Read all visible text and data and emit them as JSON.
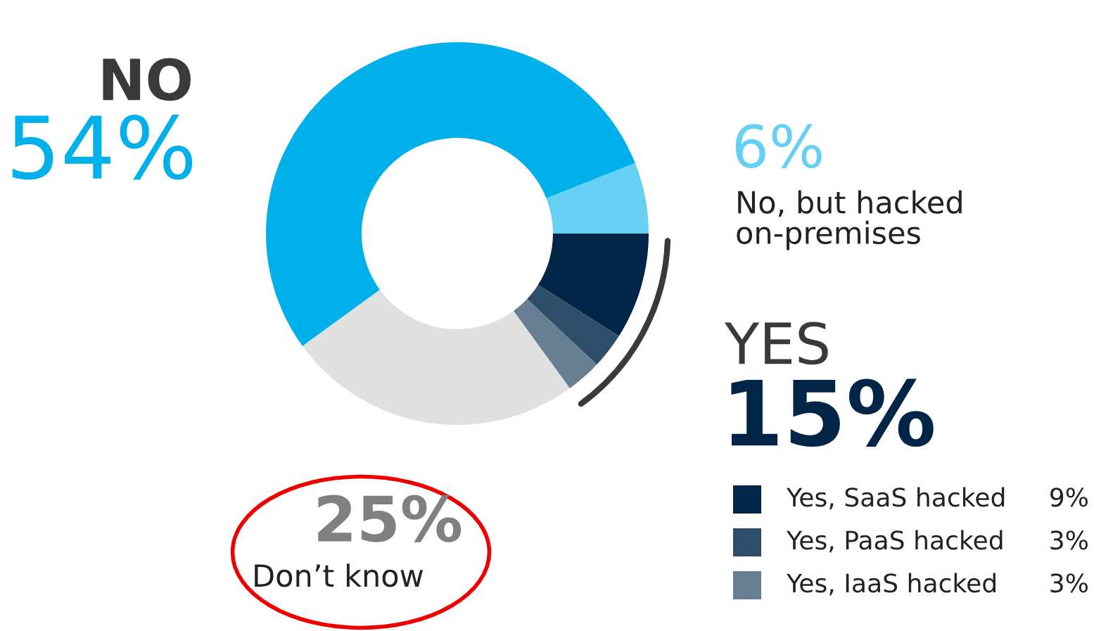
{
  "chart_data": {
    "type": "donut",
    "categories": [
      "NO",
      "No, but hacked on-premises",
      "Yes, SaaS hacked",
      "Yes, PaaS hacked",
      "Yes, IaaS hacked",
      "Don’t know"
    ],
    "values": [
      54,
      6,
      9,
      3,
      3,
      25
    ],
    "colors": [
      "#00b0ea",
      "#66d0f4",
      "#002547",
      "#2e4d69",
      "#687f93",
      "#e0e0e0"
    ],
    "value_labels": [
      "54%",
      "6%",
      "9%",
      "3%",
      "3%",
      "25%"
    ],
    "annotations": [
      "YES",
      "15%"
    ],
    "legend": "bottom right"
  }
}
